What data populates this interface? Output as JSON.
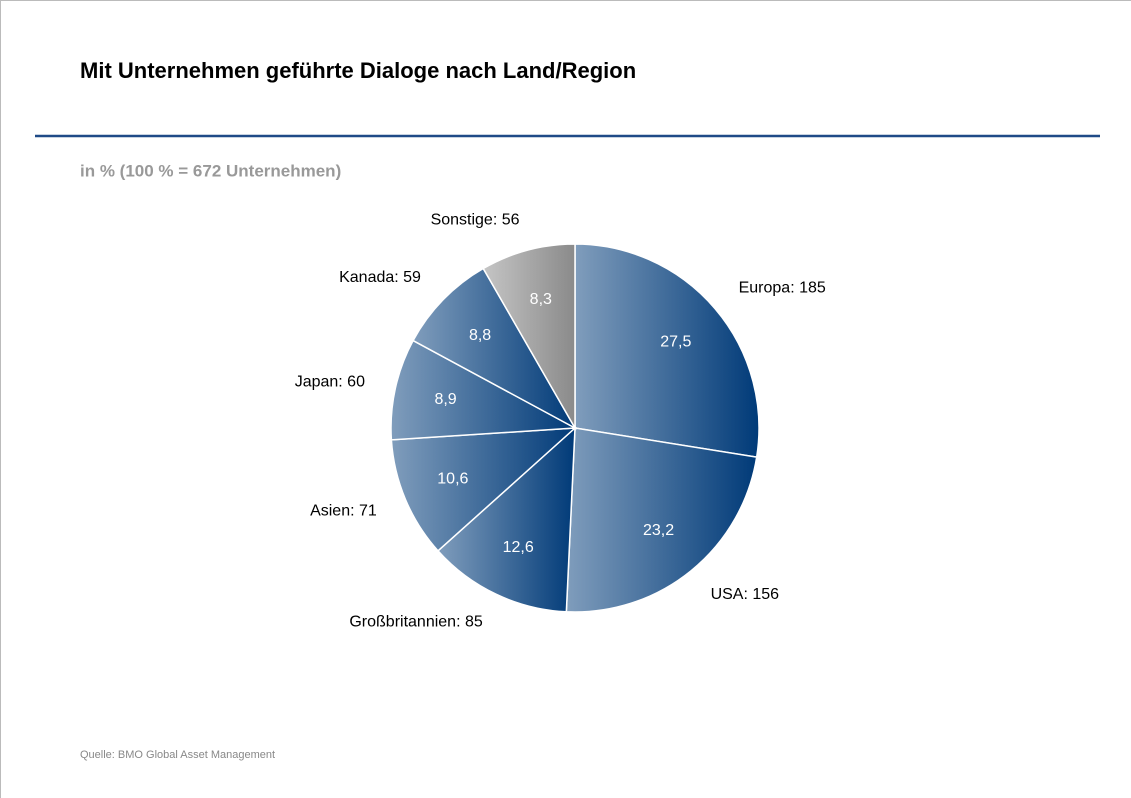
{
  "chart_data": {
    "type": "pie",
    "title": "Mit Unternehmen geführte Dialoge nach Land/Region",
    "subtitle": "in % (100 % = 672 Unternehmen)",
    "source": "Quelle: BMO Global Asset Management",
    "categories": [
      "Europa: 185",
      "USA: 156",
      "Großbritannien: 85",
      "Asien: 71",
      "Japan: 60",
      "Kanada: 59",
      "Sonstige: 56"
    ],
    "values": [
      27.5,
      23.2,
      12.6,
      10.6,
      8.9,
      8.8,
      8.3
    ],
    "value_labels": [
      "27,5",
      "23,2",
      "12,6",
      "10,6",
      "8,9",
      "8,8",
      "8,3"
    ],
    "colors": [
      "#003a78",
      "#003a78",
      "#003a78",
      "#003a78",
      "#003a78",
      "#003a78",
      "#8a8a8a"
    ]
  }
}
